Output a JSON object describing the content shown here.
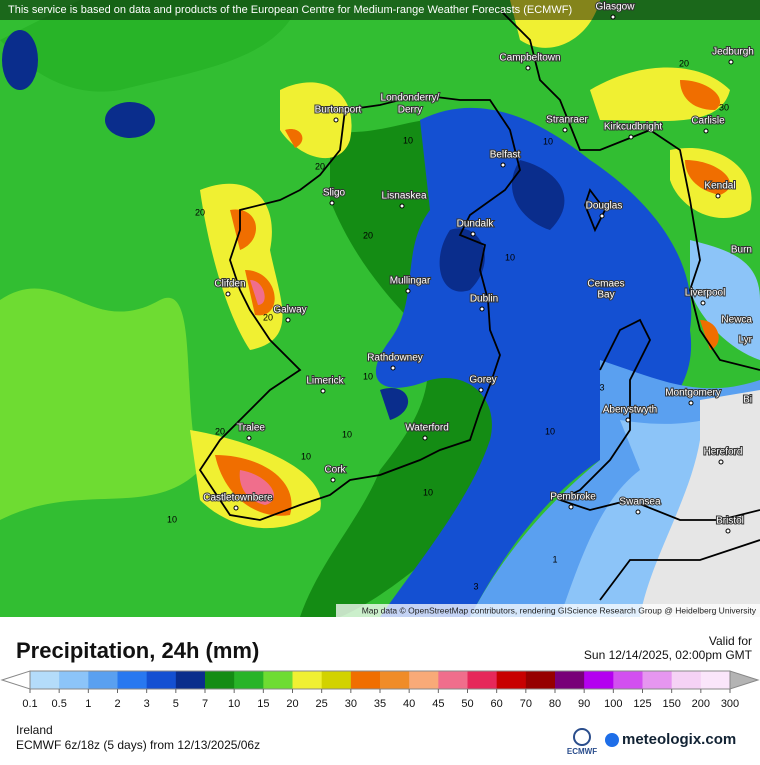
{
  "header": {
    "notice": "This service is based on data and products of the European Centre for Medium-range Weather Forecasts (ECMWF)",
    "attribution": "Map data © OpenStreetMap contributors, rendering GIScience Research Group @ Heidelberg University"
  },
  "map": {
    "places": [
      "Glasgow",
      "Jedburgh",
      "Campbeltown",
      "Londonderry/",
      "Derry",
      "Burtonport",
      "Stranraer",
      "Kirkcudbright",
      "Carlisle",
      "Belfast",
      "Kendal",
      "Sligo",
      "Lisnaskea",
      "Douglas",
      "Dundalk",
      "Burn",
      "Clifden",
      "Mullingar",
      "Cemaes",
      "Bay",
      "Liverpool",
      "Galway",
      "Dublin",
      "Newca",
      "Lyr",
      "Rathdowney",
      "Limerick",
      "Gorey",
      "Montgomery",
      "Aberystwyth",
      "Bi",
      "Tralee",
      "Waterford",
      "Hereford",
      "Cork",
      "Castletownbere",
      "Pembroke",
      "Swansea",
      "Bristol"
    ],
    "contour_labels": [
      20,
      10,
      10,
      20,
      20,
      10,
      20,
      30,
      20,
      10,
      10,
      20,
      10,
      10,
      10,
      3,
      1,
      3,
      10
    ]
  },
  "legend": {
    "title": "Precipitation, 24h (mm)",
    "valid_label": "Valid for",
    "valid_time": "Sun 12/14/2025, 02:00pm GMT",
    "ticks": [
      0.1,
      0.5,
      1,
      2,
      3,
      5,
      7,
      10,
      15,
      20,
      25,
      30,
      35,
      40,
      45,
      50,
      60,
      70,
      80,
      90,
      100,
      125,
      150,
      200,
      300
    ],
    "colors": [
      "#b4dcfa",
      "#8cc4f8",
      "#5aa0f0",
      "#2878f0",
      "#1450d2",
      "#0a2d8c",
      "#148c14",
      "#28b428",
      "#6edc32",
      "#f0f032",
      "#d2d200",
      "#f06e00",
      "#f08c28",
      "#f8aa78",
      "#f06e8c",
      "#e6285a",
      "#c80000",
      "#960000",
      "#780078",
      "#b400f0",
      "#d250f0",
      "#e696f0",
      "#f5d2f5",
      "#fae6fa"
    ]
  },
  "footer": {
    "region": "Ireland",
    "model": "ECMWF 6z/18z (5 days) from 12/13/2025/06z",
    "ecmwf_logo": "ECMWF",
    "brand": "meteologix.com"
  }
}
